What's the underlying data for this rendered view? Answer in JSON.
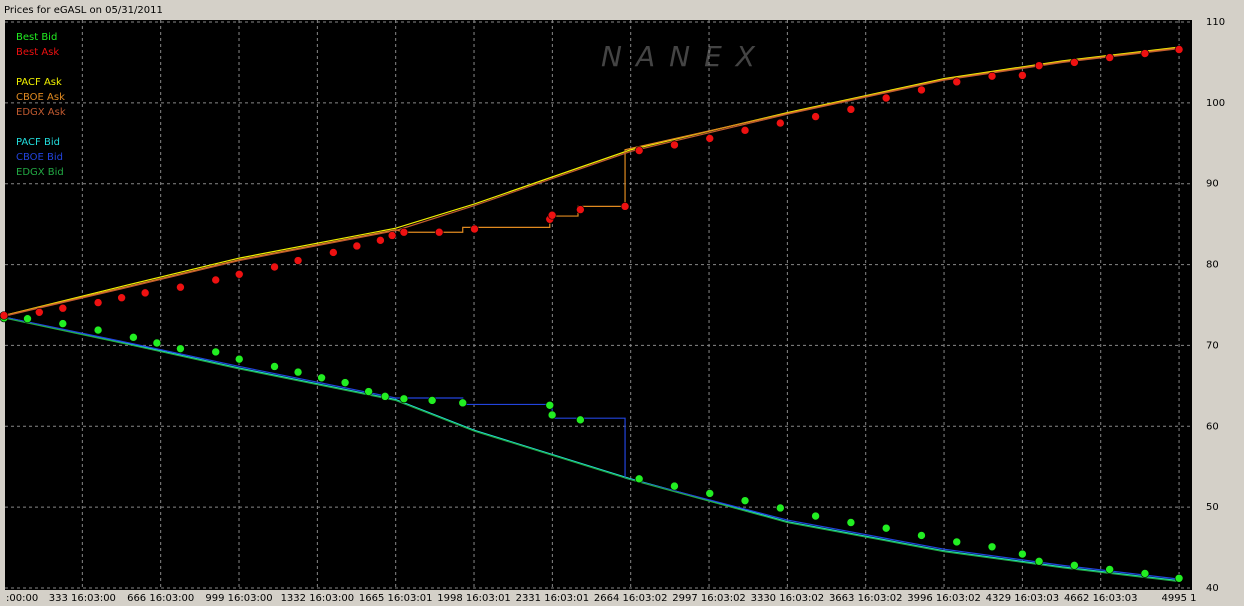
{
  "chart_data": {
    "type": "line",
    "title": "Prices for  eGASL  on  05/31/2011",
    "watermark": "NANEX",
    "xlim": [
      0,
      5050
    ],
    "ylim": [
      40,
      110
    ],
    "yticks": [
      40,
      50,
      60,
      70,
      80,
      90,
      100,
      110
    ],
    "xticks": [
      {
        "value": 0,
        "label": ":00:00"
      },
      {
        "value": 333,
        "label": "333 16:03:00"
      },
      {
        "value": 666,
        "label": "666 16:03:00"
      },
      {
        "value": 999,
        "label": "999 16:03:00"
      },
      {
        "value": 1332,
        "label": "1332 16:03:00"
      },
      {
        "value": 1665,
        "label": "1665 16:03:01"
      },
      {
        "value": 1998,
        "label": "1998 16:03:01"
      },
      {
        "value": 2331,
        "label": "2331 16:03:01"
      },
      {
        "value": 2664,
        "label": "2664 16:03:02"
      },
      {
        "value": 2997,
        "label": "2997 16:03:02"
      },
      {
        "value": 3330,
        "label": "3330 16:03:02"
      },
      {
        "value": 3663,
        "label": "3663 16:03:02"
      },
      {
        "value": 3996,
        "label": "3996 16:03:02"
      },
      {
        "value": 4329,
        "label": "4329 16:03:03"
      },
      {
        "value": 4662,
        "label": "4662 16:03:03"
      },
      {
        "value": 4995,
        "label": "4995 1"
      }
    ],
    "grid": true,
    "series": [
      {
        "name": "Best Bid",
        "color": "#22ee22",
        "kind": "scatter",
        "x": [
          0,
          100,
          250,
          400,
          550,
          650,
          750,
          900,
          1000,
          1150,
          1250,
          1350,
          1450,
          1550,
          1620,
          1700,
          1820,
          1950,
          2320,
          2330,
          2450,
          2700,
          2850,
          3000,
          3150,
          3300,
          3450,
          3600,
          3750,
          3900,
          4050,
          4200,
          4329,
          4400,
          4550,
          4700,
          4850,
          4995
        ],
        "values": [
          73.4,
          73.3,
          72.7,
          71.9,
          71.0,
          70.3,
          69.6,
          69.2,
          68.3,
          67.4,
          66.7,
          66.0,
          65.4,
          64.3,
          63.7,
          63.4,
          63.2,
          62.9,
          62.6,
          61.4,
          60.8,
          53.5,
          52.6,
          51.7,
          50.8,
          49.9,
          48.9,
          48.1,
          47.4,
          46.5,
          45.7,
          45.1,
          44.2,
          43.3,
          42.8,
          42.3,
          41.8,
          41.2
        ]
      },
      {
        "name": "Best Ask",
        "color": "#ee1111",
        "kind": "scatter",
        "x": [
          0,
          150,
          250,
          400,
          500,
          600,
          750,
          900,
          1000,
          1150,
          1250,
          1400,
          1500,
          1600,
          1650,
          1700,
          1850,
          2000,
          2320,
          2330,
          2450,
          2640,
          2700,
          2850,
          3000,
          3150,
          3300,
          3450,
          3600,
          3750,
          3900,
          4050,
          4200,
          4329,
          4400,
          4550,
          4700,
          4850,
          4995
        ],
        "values": [
          73.7,
          74.1,
          74.6,
          75.3,
          75.9,
          76.5,
          77.2,
          78.1,
          78.8,
          79.7,
          80.5,
          81.5,
          82.3,
          83.0,
          83.6,
          84.0,
          84.0,
          84.4,
          85.6,
          86.1,
          86.8,
          87.2,
          94.1,
          94.8,
          95.6,
          96.6,
          97.5,
          98.3,
          99.2,
          100.6,
          101.6,
          102.6,
          103.3,
          103.4,
          104.6,
          105.0,
          105.6,
          106.1,
          106.6
        ]
      },
      {
        "name": "PACF Ask",
        "color": "#f0f000",
        "kind": "line",
        "x": [
          0,
          500,
          1000,
          1665,
          2000,
          2664,
          3330,
          3996,
          4500,
          4995
        ],
        "values": [
          73.7,
          77.3,
          80.8,
          84.5,
          87.5,
          94.2,
          98.8,
          103.0,
          105.2,
          106.9
        ]
      },
      {
        "name": "CBOE Ask",
        "color": "#e08a20",
        "kind": "line",
        "x": [
          0,
          500,
          1000,
          1665,
          1700,
          1950,
          1950,
          2320,
          2320,
          2440,
          2440,
          2640,
          2640,
          3330,
          3996,
          4500,
          4995
        ],
        "values": [
          73.7,
          77.1,
          80.6,
          84.3,
          84.0,
          84.0,
          84.6,
          84.6,
          86.0,
          86.0,
          87.2,
          87.2,
          94.2,
          98.7,
          102.9,
          105.1,
          106.8
        ]
      },
      {
        "name": "EDGX Ask",
        "color": "#c05a30",
        "kind": "line",
        "x": [
          0,
          500,
          1000,
          1665,
          2000,
          2664,
          3330,
          3996,
          4500,
          4995
        ],
        "values": [
          73.6,
          77.0,
          80.5,
          84.2,
          87.3,
          94.0,
          98.6,
          102.8,
          105.0,
          106.7
        ]
      },
      {
        "name": "PACF Bid",
        "color": "#22dddd",
        "kind": "line",
        "x": [
          0,
          500,
          1000,
          1665,
          2000,
          2664,
          3330,
          3996,
          4500,
          4995
        ],
        "values": [
          73.5,
          70.4,
          67.2,
          63.3,
          59.5,
          53.5,
          48.2,
          44.6,
          42.6,
          40.9
        ]
      },
      {
        "name": "CBOE Bid",
        "color": "#2244dd",
        "kind": "line",
        "x": [
          0,
          500,
          1000,
          1665,
          1950,
          1950,
          2330,
          2330,
          2640,
          2640,
          3330,
          3996,
          4500,
          4995
        ],
        "values": [
          73.5,
          70.5,
          67.4,
          63.5,
          63.5,
          62.7,
          62.7,
          61.0,
          61.0,
          53.6,
          48.4,
          44.8,
          42.8,
          41.1
        ]
      },
      {
        "name": "EDGX Bid",
        "color": "#22aa44",
        "kind": "line",
        "x": [
          0,
          500,
          1000,
          1665,
          2000,
          2664,
          3330,
          3996,
          4500,
          4995
        ],
        "values": [
          73.4,
          70.3,
          67.1,
          63.2,
          59.4,
          53.4,
          48.1,
          44.5,
          42.5,
          40.8
        ]
      }
    ]
  }
}
